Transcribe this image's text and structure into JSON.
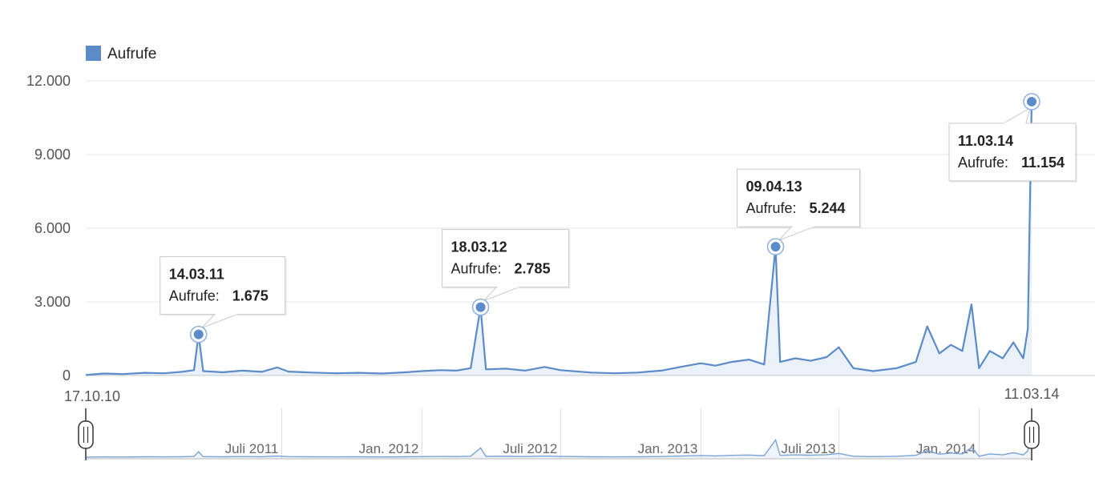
{
  "chart_data": {
    "type": "line",
    "legend": {
      "label": "Aufrufe",
      "position": "top-left"
    },
    "colors": {
      "series": "#5b8bc9",
      "navigator": "#7aa3d6",
      "grid": "#e6e6e6"
    },
    "y_ticks": [
      "0",
      "3.000",
      "6.000",
      "9.000",
      "12.000"
    ],
    "y_tick_values": [
      0,
      3000,
      6000,
      9000,
      12000
    ],
    "ylim": [
      0,
      12000
    ],
    "xlim": [
      "2010-10-17",
      "2014-03-11"
    ],
    "range_start_label": "17.10.10",
    "range_end_label": "11.03.14",
    "navigator_labels": [
      {
        "date": "2011-07-01",
        "label": "Juli 2011"
      },
      {
        "date": "2012-01-01",
        "label": "Jan. 2012"
      },
      {
        "date": "2012-07-01",
        "label": "Juli 2012"
      },
      {
        "date": "2013-01-01",
        "label": "Jan. 2013"
      },
      {
        "date": "2013-07-01",
        "label": "Juli 2013"
      },
      {
        "date": "2014-01-01",
        "label": "Jan. 2014"
      }
    ],
    "series": [
      {
        "name": "Aufrufe",
        "points": [
          [
            "2010-10-17",
            20
          ],
          [
            "2010-11-10",
            80
          ],
          [
            "2010-12-05",
            60
          ],
          [
            "2011-01-02",
            110
          ],
          [
            "2011-01-28",
            90
          ],
          [
            "2011-02-20",
            150
          ],
          [
            "2011-03-08",
            220
          ],
          [
            "2011-03-14",
            1675
          ],
          [
            "2011-03-20",
            180
          ],
          [
            "2011-04-15",
            130
          ],
          [
            "2011-05-10",
            200
          ],
          [
            "2011-06-05",
            150
          ],
          [
            "2011-06-25",
            330
          ],
          [
            "2011-07-10",
            160
          ],
          [
            "2011-08-10",
            120
          ],
          [
            "2011-09-10",
            90
          ],
          [
            "2011-10-10",
            110
          ],
          [
            "2011-11-10",
            80
          ],
          [
            "2011-12-10",
            130
          ],
          [
            "2012-01-01",
            180
          ],
          [
            "2012-01-25",
            220
          ],
          [
            "2012-02-15",
            200
          ],
          [
            "2012-03-05",
            300
          ],
          [
            "2012-03-18",
            2785
          ],
          [
            "2012-03-25",
            250
          ],
          [
            "2012-04-20",
            280
          ],
          [
            "2012-05-15",
            200
          ],
          [
            "2012-06-10",
            350
          ],
          [
            "2012-07-01",
            220
          ],
          [
            "2012-08-10",
            120
          ],
          [
            "2012-09-10",
            90
          ],
          [
            "2012-10-10",
            120
          ],
          [
            "2012-11-10",
            200
          ],
          [
            "2012-12-05",
            350
          ],
          [
            "2013-01-01",
            500
          ],
          [
            "2013-01-20",
            400
          ],
          [
            "2013-02-10",
            550
          ],
          [
            "2013-03-05",
            650
          ],
          [
            "2013-03-25",
            450
          ],
          [
            "2013-04-09",
            5244
          ],
          [
            "2013-04-15",
            550
          ],
          [
            "2013-05-05",
            700
          ],
          [
            "2013-05-25",
            600
          ],
          [
            "2013-06-15",
            750
          ],
          [
            "2013-07-01",
            1150
          ],
          [
            "2013-07-20",
            300
          ],
          [
            "2013-08-15",
            180
          ],
          [
            "2013-09-15",
            300
          ],
          [
            "2013-10-10",
            550
          ],
          [
            "2013-10-25",
            2000
          ],
          [
            "2013-11-10",
            900
          ],
          [
            "2013-11-25",
            1250
          ],
          [
            "2013-12-10",
            1000
          ],
          [
            "2013-12-22",
            2900
          ],
          [
            "2014-01-01",
            300
          ],
          [
            "2014-01-15",
            1000
          ],
          [
            "2014-02-01",
            700
          ],
          [
            "2014-02-15",
            1350
          ],
          [
            "2014-02-28",
            700
          ],
          [
            "2014-03-06",
            1900
          ],
          [
            "2014-03-11",
            11154
          ]
        ]
      }
    ],
    "annotations": [
      {
        "date": "2011-03-14",
        "label": "14.03.11",
        "series_name": "Aufrufe:",
        "value": 1675,
        "value_label": "1.675"
      },
      {
        "date": "2012-03-18",
        "label": "18.03.12",
        "series_name": "Aufrufe:",
        "value": 2785,
        "value_label": "2.785"
      },
      {
        "date": "2013-04-09",
        "label": "09.04.13",
        "series_name": "Aufrufe:",
        "value": 5244,
        "value_label": "5.244"
      },
      {
        "date": "2014-03-11",
        "label": "11.03.14",
        "series_name": "Aufrufe:",
        "value": 11154,
        "value_label": "11.154"
      }
    ]
  }
}
